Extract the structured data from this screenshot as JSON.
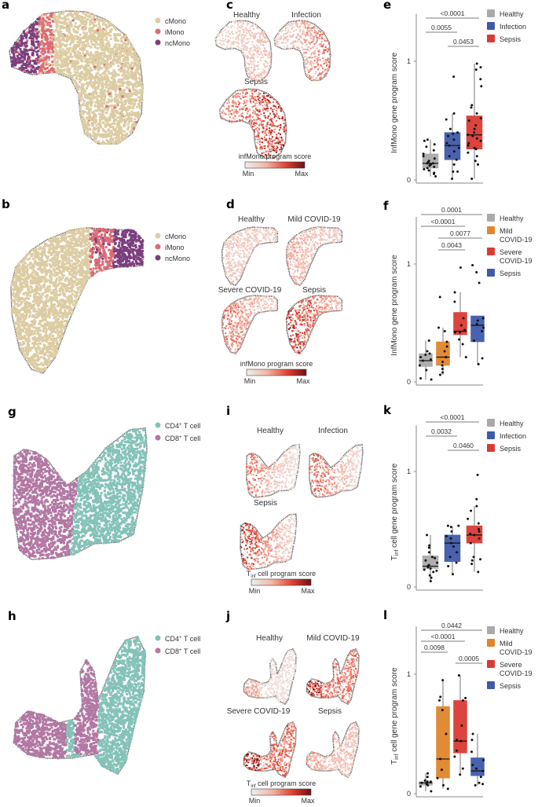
{
  "panel_letters": [
    "a",
    "b",
    "c",
    "d",
    "e",
    "f",
    "g",
    "h",
    "i",
    "j",
    "k",
    "l"
  ],
  "colors": {
    "cMono": "#dccca3",
    "iMono": "#dd6b74",
    "ncMono": "#7b3e7f",
    "CD4": "#84c2b8",
    "CD8": "#b277a3",
    "healthy": "#aaaaaa",
    "infection": "#3f5aa9",
    "sepsis_e": "#d93b34",
    "mild": "#e0852a",
    "severe": "#d93b34",
    "sepsis_f": "#3f5aa9",
    "score_min": "#f2f2f2",
    "score_max": "#6e0f15"
  },
  "umap_legends": {
    "a": [
      "cMono",
      "iMono",
      "ncMono"
    ],
    "b": [
      "cMono",
      "iMono",
      "ncMono"
    ],
    "g": [
      {
        "main": "CD4",
        "sup": "+",
        "rest": " T cell"
      },
      {
        "main": "CD8",
        "sup": "+",
        "rest": " T cell"
      }
    ],
    "h": [
      {
        "main": "CD4",
        "sup": "+",
        "rest": " T cell"
      },
      {
        "main": "CD8",
        "sup": "+",
        "rest": " T cell"
      }
    ]
  },
  "score_panels": {
    "c": {
      "titles": [
        "Healthy",
        "Infection",
        "Sepsis"
      ],
      "colorbar_label": "infMono program score",
      "min": "Min",
      "max": "Max"
    },
    "d": {
      "titles": [
        "Healthy",
        "Mild COVID-19",
        "Severe COVID-19",
        "Sepsis"
      ],
      "colorbar_label": "infMono program score",
      "min": "Min",
      "max": "Max"
    },
    "i": {
      "titles": [
        "Healthy",
        "Infection",
        "Sepsis"
      ],
      "colorbar_label_main": "T",
      "colorbar_label_sub": "inf",
      "colorbar_label_rest": " cell program score",
      "min": "Min",
      "max": "Max"
    },
    "j": {
      "titles": [
        "Healthy",
        "Mild COVID-19",
        "Severe COVID-19",
        "Sepsis"
      ],
      "colorbar_label_main": "T",
      "colorbar_label_sub": "inf",
      "colorbar_label_rest": " cell program score",
      "min": "Min",
      "max": "Max"
    }
  },
  "chart_data": [
    {
      "panel": "e",
      "type": "box",
      "ylabel": "InfMono gene program score",
      "ylim": [
        0,
        1.4
      ],
      "yticks": [
        0,
        1
      ],
      "categories": [
        "Healthy",
        "Infection",
        "Sepsis"
      ],
      "legend": [
        {
          "label": "Healthy",
          "color": "#aaaaaa"
        },
        {
          "label": "Infection",
          "color": "#3f5aa9"
        },
        {
          "label": "Sepsis",
          "color": "#d93b34"
        }
      ],
      "boxes": [
        {
          "q1": 0.1,
          "median": 0.14,
          "q3": 0.22,
          "wlo": 0.03,
          "whi": 0.34,
          "points": [
            0.03,
            0.05,
            0.06,
            0.08,
            0.09,
            0.1,
            0.11,
            0.12,
            0.13,
            0.13,
            0.14,
            0.14,
            0.15,
            0.16,
            0.18,
            0.2,
            0.22,
            0.25,
            0.28,
            0.3,
            0.33,
            0.34
          ]
        },
        {
          "q1": 0.17,
          "median": 0.29,
          "q3": 0.4,
          "wlo": 0.01,
          "whi": 0.56,
          "points": [
            0.01,
            0.07,
            0.07,
            0.13,
            0.17,
            0.2,
            0.24,
            0.27,
            0.29,
            0.31,
            0.34,
            0.37,
            0.39,
            0.4,
            0.43,
            0.51,
            0.56,
            0.87
          ]
        },
        {
          "q1": 0.26,
          "median": 0.38,
          "q3": 0.54,
          "wlo": 0.01,
          "whi": 0.98,
          "points": [
            0.01,
            0.13,
            0.16,
            0.2,
            0.23,
            0.26,
            0.27,
            0.29,
            0.31,
            0.33,
            0.35,
            0.37,
            0.38,
            0.4,
            0.43,
            0.46,
            0.5,
            0.52,
            0.56,
            0.61,
            0.63,
            0.79,
            0.85,
            0.93,
            0.95,
            0.98
          ]
        }
      ],
      "comparisons": [
        {
          "from": 0,
          "to": 2,
          "label": "<0.0001",
          "level": 2
        },
        {
          "from": 0,
          "to": 1,
          "label": "0.0055",
          "level": 1
        },
        {
          "from": 1,
          "to": 2,
          "label": "0.0453",
          "level": 0
        }
      ]
    },
    {
      "panel": "f",
      "type": "box",
      "ylabel": "InfMono gene program score",
      "ylim": [
        0,
        1.4
      ],
      "yticks": [
        0,
        1
      ],
      "categories": [
        "Healthy",
        "Mild COVID-19",
        "Severe COVID-19",
        "Sepsis"
      ],
      "legend": [
        {
          "label": "Healthy",
          "color": "#aaaaaa"
        },
        {
          "label": "Mild COVID-19",
          "color": "#e0852a"
        },
        {
          "label": "Severe COVID-19",
          "color": "#d93b34"
        },
        {
          "label": "Sepsis",
          "color": "#3f5aa9"
        }
      ],
      "boxes": [
        {
          "q1": 0.13,
          "median": 0.18,
          "q3": 0.24,
          "wlo": 0.02,
          "whi": 0.35,
          "points": [
            0.02,
            0.03,
            0.1,
            0.14,
            0.18,
            0.19,
            0.21,
            0.23,
            0.24,
            0.26,
            0.35
          ]
        },
        {
          "q1": 0.14,
          "median": 0.21,
          "q3": 0.34,
          "wlo": 0.06,
          "whi": 0.46,
          "points": [
            0.06,
            0.08,
            0.11,
            0.14,
            0.17,
            0.21,
            0.26,
            0.3,
            0.34,
            0.43,
            0.46,
            0.72
          ]
        },
        {
          "q1": 0.4,
          "median": 0.43,
          "q3": 0.59,
          "wlo": 0.21,
          "whi": 0.76,
          "points": [
            0.21,
            0.32,
            0.36,
            0.42,
            0.42,
            0.44,
            0.48,
            0.54,
            0.68,
            0.76,
            0.97
          ]
        },
        {
          "q1": 0.34,
          "median": 0.48,
          "q3": 0.56,
          "wlo": 0.15,
          "whi": 0.56,
          "points": [
            0.15,
            0.2,
            0.35,
            0.43,
            0.46,
            0.49,
            0.52,
            0.54,
            0.84,
            0.93,
            0.99
          ]
        }
      ],
      "comparisons": [
        {
          "from": 0,
          "to": 3,
          "label": "0.0001",
          "level": 3
        },
        {
          "from": 0,
          "to": 2,
          "label": "<0.0001",
          "level": 2
        },
        {
          "from": 1,
          "to": 3,
          "label": "0.0077",
          "level": 1
        },
        {
          "from": 1,
          "to": 2,
          "label": "0.0043",
          "level": 0
        }
      ]
    },
    {
      "panel": "k",
      "type": "box",
      "ylabel_main": "T",
      "ylabel_sub": "inf",
      "ylabel_rest": " cell gene program score",
      "ylim": [
        0,
        1.4
      ],
      "yticks": [
        0,
        1
      ],
      "categories": [
        "Healthy",
        "Infection",
        "Sepsis"
      ],
      "legend": [
        {
          "label": "Healthy",
          "color": "#aaaaaa"
        },
        {
          "label": "Infection",
          "color": "#3f5aa9"
        },
        {
          "label": "Sepsis",
          "color": "#d93b34"
        }
      ],
      "boxes": [
        {
          "q1": 0.16,
          "median": 0.18,
          "q3": 0.27,
          "wlo": 0.05,
          "whi": 0.45,
          "points": [
            0.05,
            0.08,
            0.1,
            0.13,
            0.14,
            0.15,
            0.16,
            0.17,
            0.18,
            0.19,
            0.21,
            0.23,
            0.25,
            0.26,
            0.3,
            0.34,
            0.36,
            0.45
          ]
        },
        {
          "q1": 0.22,
          "median": 0.38,
          "q3": 0.45,
          "wlo": 0.11,
          "whi": 0.52,
          "points": [
            0.11,
            0.18,
            0.21,
            0.26,
            0.3,
            0.35,
            0.38,
            0.42,
            0.44,
            0.48,
            0.52,
            0.53,
            0.53
          ]
        },
        {
          "q1": 0.38,
          "median": 0.45,
          "q3": 0.53,
          "wlo": 0.13,
          "whi": 0.7,
          "points": [
            0.13,
            0.2,
            0.23,
            0.24,
            0.26,
            0.38,
            0.42,
            0.45,
            0.46,
            0.48,
            0.5,
            0.55,
            0.59,
            0.66,
            0.7,
            0.76,
            0.97
          ]
        }
      ],
      "comparisons": [
        {
          "from": 0,
          "to": 2,
          "label": "<0.0001",
          "level": 2
        },
        {
          "from": 0,
          "to": 1,
          "label": "0.0032",
          "level": 1
        },
        {
          "from": 1,
          "to": 2,
          "label": "0.0460",
          "level": 0
        }
      ]
    },
    {
      "panel": "l",
      "type": "box",
      "ylabel_main": "T",
      "ylabel_sub": "inf",
      "ylabel_rest": " cell gene program score",
      "ylim": [
        0,
        1.4
      ],
      "yticks": [
        0,
        1
      ],
      "categories": [
        "Healthy",
        "Mild COVID-19",
        "Severe COVID-19",
        "Sepsis"
      ],
      "legend": [
        {
          "label": "Healthy",
          "color": "#aaaaaa"
        },
        {
          "label": "Mild COVID-19",
          "color": "#e0852a"
        },
        {
          "label": "Severe COVID-19",
          "color": "#d93b34"
        },
        {
          "label": "Sepsis",
          "color": "#3f5aa9"
        }
      ],
      "boxes": [
        {
          "q1": 0.07,
          "median": 0.09,
          "q3": 0.1,
          "wlo": 0.02,
          "whi": 0.17,
          "points": [
            0.02,
            0.06,
            0.07,
            0.08,
            0.09,
            0.09,
            0.1,
            0.1,
            0.11,
            0.14,
            0.17
          ]
        },
        {
          "q1": 0.13,
          "median": 0.29,
          "q3": 0.73,
          "wlo": 0.04,
          "whi": 0.95,
          "points": [
            0.04,
            0.07,
            0.13,
            0.2,
            0.29,
            0.5,
            0.7,
            0.78,
            0.81,
            0.95
          ]
        },
        {
          "q1": 0.34,
          "median": 0.44,
          "q3": 0.78,
          "wlo": 0.16,
          "whi": 0.99,
          "points": [
            0.16,
            0.21,
            0.31,
            0.36,
            0.44,
            0.45,
            0.57,
            0.78,
            0.8,
            0.99
          ]
        },
        {
          "q1": 0.15,
          "median": 0.19,
          "q3": 0.3,
          "wlo": 0.07,
          "whi": 0.5,
          "points": [
            0.07,
            0.08,
            0.09,
            0.14,
            0.19,
            0.21,
            0.24,
            0.28,
            0.35,
            0.45,
            0.5
          ]
        }
      ],
      "comparisons": [
        {
          "from": 0,
          "to": 3,
          "label": "0.0442",
          "level": 3
        },
        {
          "from": 0,
          "to": 2,
          "label": "<0.0001",
          "level": 2
        },
        {
          "from": 0,
          "to": 1,
          "label": "0.0098",
          "level": 1
        },
        {
          "from": 2,
          "to": 3,
          "label": "0.0005",
          "level": 1
        }
      ]
    }
  ]
}
